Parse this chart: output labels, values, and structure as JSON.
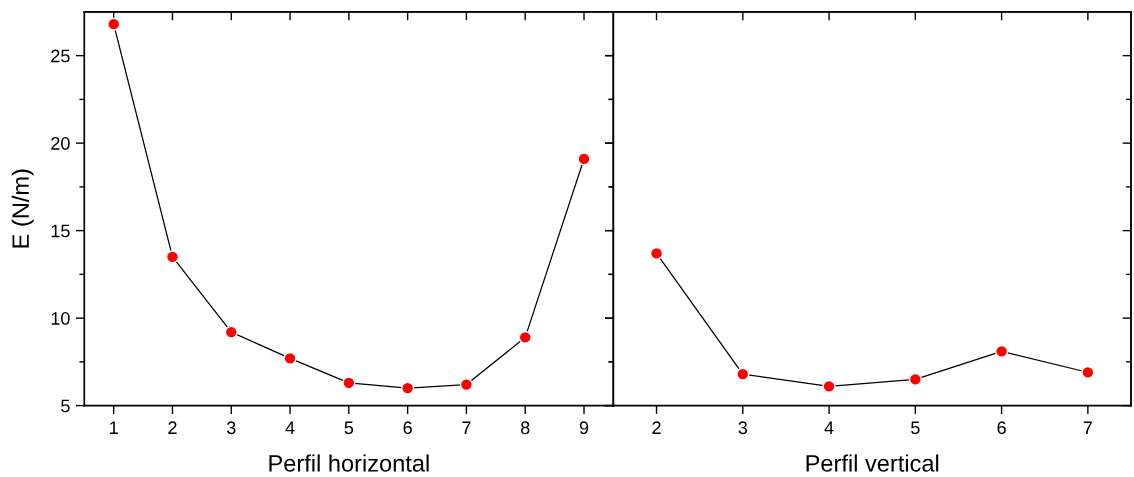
{
  "chart_data": [
    {
      "type": "line",
      "xlabel": "Perfil horizontal",
      "ylabel": "E (N/m)",
      "x": [
        1,
        2,
        3,
        4,
        5,
        6,
        7,
        8,
        9
      ],
      "series": [
        {
          "color": "#ff0000",
          "values": [
            26.8,
            13.5,
            9.2,
            7.7,
            6.3,
            6.0,
            6.2,
            8.9,
            19.1
          ]
        }
      ],
      "marker": "circle",
      "line_style": "solid",
      "grid": false,
      "legend": false,
      "xlim": [
        0.5,
        9.5
      ],
      "xticks": [
        1,
        2,
        3,
        4,
        5,
        6,
        7,
        8,
        9
      ],
      "ylim": [
        5,
        27.5
      ],
      "yticks": [
        5,
        {
          "value": 7.5,
          "label": null
        },
        10,
        {
          "value": 12.5,
          "label": null
        },
        15,
        {
          "value": 17.5,
          "label": null
        },
        20,
        {
          "value": 22.5,
          "label": null
        },
        25
      ]
    },
    {
      "type": "line",
      "xlabel": "Perfil vertical",
      "x": [
        2,
        3,
        4,
        5,
        6,
        7
      ],
      "series": [
        {
          "color": "#ff0000",
          "values": [
            13.7,
            6.8,
            6.1,
            6.5,
            8.1,
            6.9
          ]
        }
      ],
      "marker": "circle",
      "line_style": "solid",
      "grid": false,
      "legend": false,
      "tick_labels": "x",
      "xlim": [
        1.5,
        7.5
      ],
      "xticks": [
        2,
        3,
        4,
        5,
        6,
        7
      ],
      "ylim": [
        5,
        27.5
      ],
      "yticks": [
        5,
        {
          "value": 7.5,
          "label": null
        },
        10,
        {
          "value": 12.5,
          "label": null
        },
        15,
        {
          "value": 17.5,
          "label": null
        },
        20,
        {
          "value": 22.5,
          "label": null
        },
        25
      ]
    }
  ]
}
